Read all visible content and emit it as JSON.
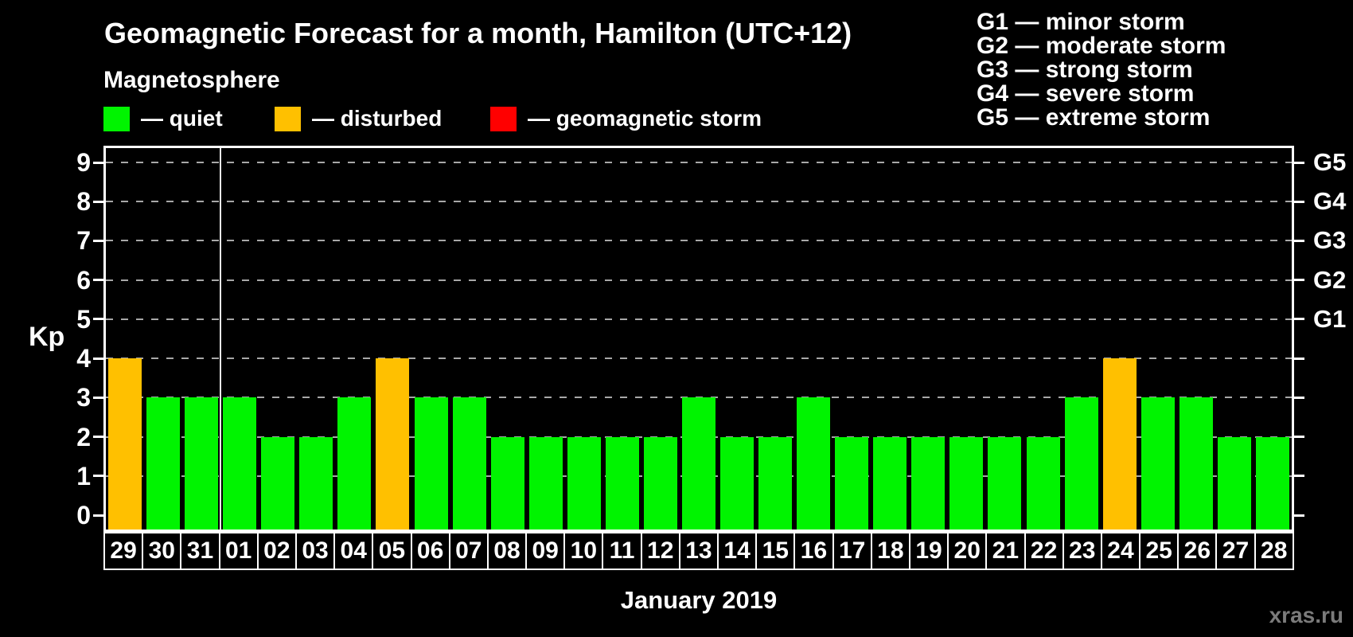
{
  "header": {
    "title": "Geomagnetic Forecast for a month, Hamilton (UTC+12)",
    "subtitle": "Magnetosphere"
  },
  "legend": {
    "items": [
      {
        "label": "— quiet",
        "status": "quiet"
      },
      {
        "label": "— disturbed",
        "status": "disturbed"
      },
      {
        "label": "— geomagnetic storm",
        "status": "storm"
      }
    ]
  },
  "g_legend": {
    "lines": [
      "G1 — minor storm",
      "G2 — moderate storm",
      "G3 — strong storm",
      "G4 — severe storm",
      "G5 — extreme storm"
    ]
  },
  "colors": {
    "quiet": "#00f400",
    "disturbed": "#ffc000",
    "storm": "#ff0000",
    "grid": "#a8a8a8",
    "axis": "#ffffff",
    "watermark": "#7b7b7b",
    "background": "#000000"
  },
  "chart_data": {
    "type": "bar",
    "title": "Geomagnetic Forecast for a month, Hamilton (UTC+12)",
    "ylabel": "Kp",
    "xlabel": "January 2019",
    "ylim": [
      0,
      9
    ],
    "grid": "dashed horizontal lines at each integer Kp level",
    "legend_position": "top",
    "y_ticks": [
      0,
      1,
      2,
      3,
      4,
      5,
      6,
      7,
      8,
      9
    ],
    "right_axis": {
      "labels": [
        "G1",
        "G2",
        "G3",
        "G4",
        "G5"
      ],
      "values": [
        5,
        6,
        7,
        8,
        9
      ]
    },
    "month_separator_after_index": 2,
    "categories": [
      "29",
      "30",
      "31",
      "01",
      "02",
      "03",
      "04",
      "05",
      "06",
      "07",
      "08",
      "09",
      "10",
      "11",
      "12",
      "13",
      "14",
      "15",
      "16",
      "17",
      "18",
      "19",
      "20",
      "21",
      "22",
      "23",
      "24",
      "25",
      "26",
      "27",
      "28"
    ],
    "values": [
      4,
      3,
      3,
      3,
      2,
      2,
      3,
      4,
      3,
      3,
      2,
      2,
      2,
      2,
      2,
      3,
      2,
      2,
      3,
      2,
      2,
      2,
      2,
      2,
      2,
      3,
      4,
      3,
      3,
      2,
      2
    ],
    "statuses": [
      "disturbed",
      "quiet",
      "quiet",
      "quiet",
      "quiet",
      "quiet",
      "quiet",
      "disturbed",
      "quiet",
      "quiet",
      "quiet",
      "quiet",
      "quiet",
      "quiet",
      "quiet",
      "quiet",
      "quiet",
      "quiet",
      "quiet",
      "quiet",
      "quiet",
      "quiet",
      "quiet",
      "quiet",
      "quiet",
      "quiet",
      "disturbed",
      "quiet",
      "quiet",
      "quiet",
      "quiet"
    ]
  },
  "footer": {
    "month_label": "January 2019",
    "watermark": "xras.ru"
  }
}
